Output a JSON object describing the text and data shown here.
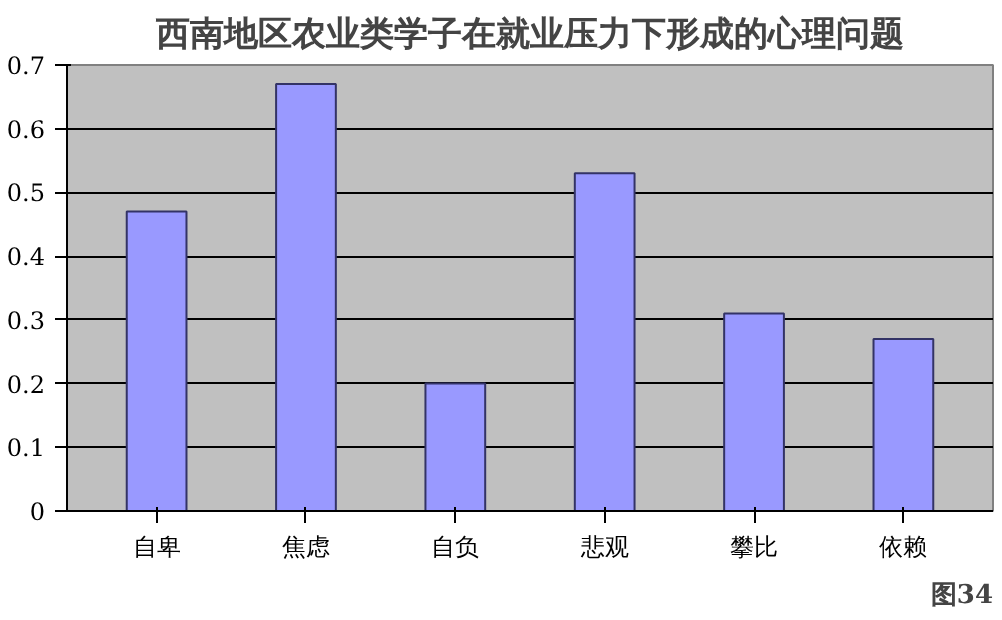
{
  "chart_data": {
    "type": "bar",
    "title": "西南地区农业类学子在就业压力下形成的心理问题",
    "categories": [
      "自卑",
      "焦虑",
      "自负",
      "悲观",
      "攀比",
      "依赖"
    ],
    "values": [
      0.47,
      0.67,
      0.2,
      0.53,
      0.31,
      0.27
    ],
    "color": "#9999ff",
    "ylim": [
      0,
      0.7
    ],
    "yticks": [
      0,
      0.1,
      0.2,
      0.3,
      0.4,
      0.5,
      0.6,
      0.7
    ],
    "grid": "y",
    "annotations": [
      "图34"
    ]
  }
}
